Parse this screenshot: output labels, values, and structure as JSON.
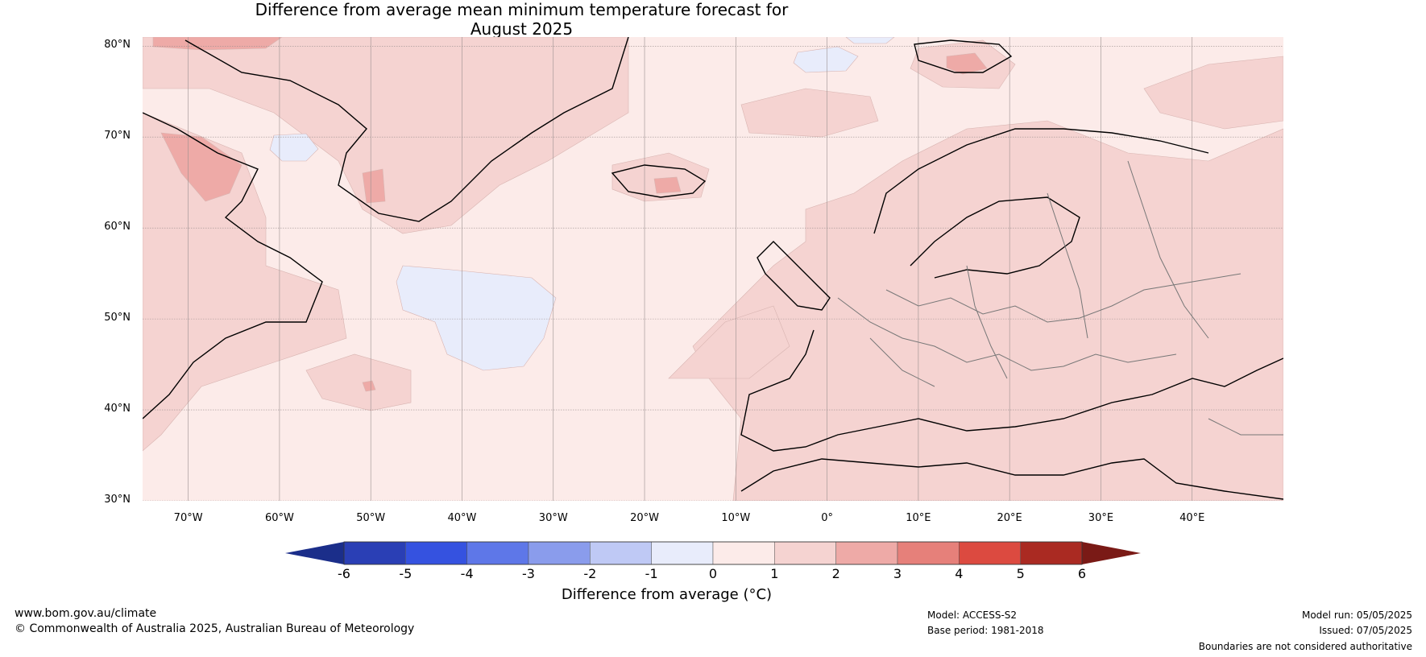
{
  "title_line1": "Difference from average mean minimum temperature forecast for",
  "title_line2": "August 2025",
  "map": {
    "lon_range": [
      -75,
      50
    ],
    "lat_range": [
      30,
      81
    ],
    "lat_ticks": [
      {
        "value": 80,
        "label": "80°N"
      },
      {
        "value": 70,
        "label": "70°N"
      },
      {
        "value": 60,
        "label": "60°N"
      },
      {
        "value": 50,
        "label": "50°N"
      },
      {
        "value": 40,
        "label": "40°N"
      },
      {
        "value": 30,
        "label": "30°N"
      }
    ],
    "lon_ticks": [
      {
        "value": -70,
        "label": "70°W"
      },
      {
        "value": -60,
        "label": "60°W"
      },
      {
        "value": -50,
        "label": "50°W"
      },
      {
        "value": -40,
        "label": "40°W"
      },
      {
        "value": -30,
        "label": "30°W"
      },
      {
        "value": -20,
        "label": "20°W"
      },
      {
        "value": -10,
        "label": "10°W"
      },
      {
        "value": 0,
        "label": "0°"
      },
      {
        "value": 10,
        "label": "10°E"
      },
      {
        "value": 20,
        "label": "20°E"
      },
      {
        "value": 30,
        "label": "30°E"
      },
      {
        "value": 40,
        "label": "40°E"
      }
    ],
    "background_class_color": "#fcebe9"
  },
  "colorbar": {
    "bounds": [
      -6,
      -5,
      -4,
      -3,
      -2,
      -1,
      0,
      1,
      2,
      3,
      4,
      5,
      6
    ],
    "bound_labels": [
      "-6",
      "-5",
      "-4",
      "-3",
      "-2",
      "-1",
      "0",
      "1",
      "2",
      "3",
      "4",
      "5",
      "6"
    ],
    "under_color": "#1b2e8a",
    "over_color": "#7a1a16",
    "colors": [
      "#2a3fb5",
      "#3552e0",
      "#5e77e8",
      "#8a9cec",
      "#bfc9f5",
      "#e8ecfb",
      "#fcebe9",
      "#f5d3d1",
      "#eeaaa7",
      "#e6807a",
      "#dc4a40",
      "#aa2a22"
    ],
    "label": "Difference from average (°C)"
  },
  "footer": {
    "website": "www.bom.gov.au/climate",
    "copyright": "© Commonwealth of Australia 2025, Australian Bureau of Meteorology",
    "model": "Model: ACCESS-S2",
    "base_period": "Base period: 1981-2018",
    "model_run": "Model run: 05/05/2025",
    "issued": "Issued: 07/05/2025",
    "disclaimer": "Boundaries are not considered authoritative"
  }
}
